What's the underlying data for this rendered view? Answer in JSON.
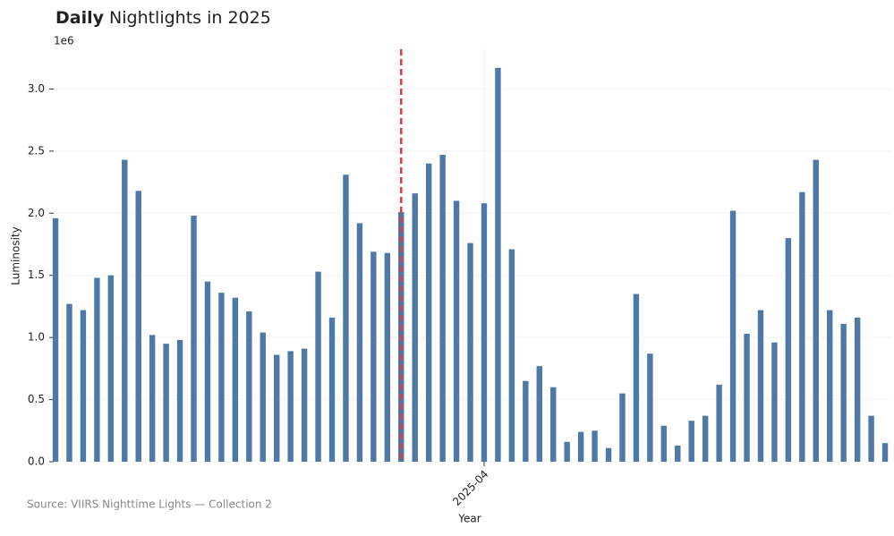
{
  "chart_data": {
    "type": "bar",
    "title_emphasis": "Daily",
    "title": "Nightlights in 2025",
    "y_scale_label": "1e6",
    "ylabel": "Luminosity",
    "xlabel": "Year",
    "source": "Source: VIIRS Nighttime Lights — Collection 2",
    "color": "#4e79a7",
    "categories": [
      null,
      null,
      null,
      null,
      null,
      null,
      null,
      null,
      null,
      null,
      null,
      null,
      null,
      null,
      null,
      null,
      null,
      null,
      null,
      null,
      null,
      null,
      null,
      null,
      null,
      null,
      null,
      null,
      null,
      null,
      null,
      "2025-04",
      null,
      null,
      null,
      null,
      null,
      null,
      null,
      null,
      null,
      null,
      null,
      null,
      null,
      null,
      null,
      null,
      null,
      null,
      null,
      null,
      null,
      null,
      null,
      null,
      null,
      null,
      null,
      null,
      null
    ],
    "values": [
      1.96,
      1.27,
      1.22,
      1.48,
      1.5,
      2.43,
      2.18,
      1.02,
      0.95,
      0.98,
      1.98,
      1.45,
      1.36,
      1.32,
      1.21,
      1.04,
      0.86,
      0.89,
      0.91,
      1.53,
      1.16,
      2.31,
      1.92,
      1.69,
      1.68,
      2.01,
      2.16,
      2.4,
      2.47,
      2.1,
      1.76,
      2.08,
      3.17,
      1.71,
      0.65,
      0.77,
      0.6,
      0.16,
      0.24,
      0.25,
      0.11,
      0.55,
      1.35,
      0.87,
      0.29,
      0.13,
      0.33,
      0.37,
      0.62,
      2.02,
      1.03,
      1.22,
      0.96,
      1.8,
      2.17,
      2.43,
      1.22,
      1.11,
      1.16,
      0.37,
      0.15
    ],
    "ylim": [
      0,
      3.32
    ],
    "yticks": [
      {
        "value": 0,
        "label": "0.0"
      },
      0.5,
      {
        "value": 1,
        "label": "1.0"
      },
      1.5,
      {
        "value": 2,
        "label": "2.0"
      },
      2.5,
      {
        "value": 3,
        "label": "3.0"
      }
    ],
    "grid": true,
    "reference_line": {
      "category_index": 25,
      "color": "#e8383d"
    }
  }
}
